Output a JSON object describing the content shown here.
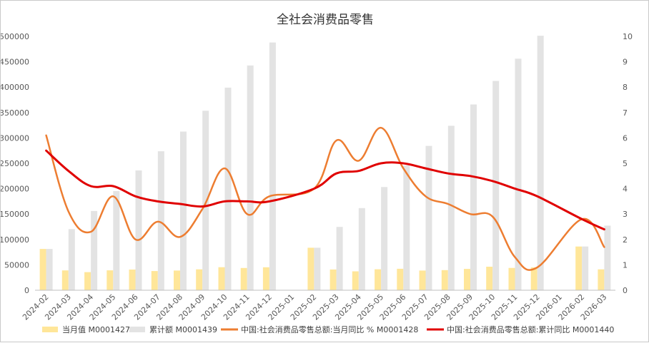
{
  "chart_data": {
    "type": "bar",
    "title": "全社会消费品零售",
    "categories": [
      "2024-02",
      "2024-03",
      "2024-04",
      "2024-05",
      "2024-06",
      "2024-07",
      "2024-08",
      "2024-09",
      "2024-10",
      "2024-11",
      "2024-12",
      "2025-01",
      "2025-02",
      "2025-03",
      "2025-04",
      "2025-05",
      "2025-06",
      "2025-07",
      "2025-08",
      "2025-09",
      "2025-10",
      "2025-11",
      "2025-12",
      "2026-01",
      "2026-02",
      "2026-03"
    ],
    "y_left": {
      "min": 0,
      "max": 500000,
      "ticks": [
        "0",
        "50000",
        "100000",
        "150000",
        "200000",
        "250000",
        "300000",
        "350000",
        "400000",
        "450000",
        "500000"
      ]
    },
    "y_right": {
      "min": 0,
      "max": 10,
      "ticks": [
        "0",
        "1",
        "2",
        "3",
        "4",
        "5",
        "6",
        "7",
        "8",
        "9",
        "10"
      ]
    },
    "grid": false,
    "legend_position": "bottom",
    "series": [
      {
        "name": "当月值 M0001427",
        "type": "bar",
        "axis": "left",
        "color": "#ffe699",
        "values": [
          81307,
          39020,
          35699,
          39211,
          40732,
          37757,
          38726,
          41112,
          45396,
          43763,
          45172,
          null,
          83731,
          40940,
          37174,
          41326,
          42287,
          38780,
          39668,
          41971,
          46291,
          43898,
          45136,
          null,
          86100,
          41200
        ]
      },
      {
        "name": "累计额 M0001439",
        "type": "bar",
        "axis": "left",
        "color": "#e3e3e3",
        "values": [
          81307,
          120327,
          156026,
          195237,
          235969,
          273726,
          312452,
          353564,
          398960,
          442723,
          487895,
          null,
          83731,
          124671,
          161845,
          203171,
          245458,
          284238,
          323906,
          365877,
          412169,
          456067,
          501203,
          null,
          86100,
          127300
        ]
      },
      {
        "name": "中国:社会消费品零售总额:当月同比 % M0001428",
        "type": "line",
        "axis": "right",
        "color": "#ed7d31",
        "smooth": true,
        "values": [
          6.1,
          3.1,
          2.3,
          3.7,
          2.0,
          2.7,
          2.1,
          3.2,
          4.8,
          3.0,
          3.7,
          null,
          4.0,
          5.9,
          5.1,
          6.4,
          4.8,
          3.7,
          3.4,
          3.0,
          2.9,
          1.3,
          0.9,
          null,
          2.8,
          1.7
        ]
      },
      {
        "name": "中国:社会消费品零售总额:累计同比 M0001440",
        "type": "line",
        "axis": "right",
        "color": "#e00000",
        "smooth": true,
        "values": [
          5.5,
          4.7,
          4.1,
          4.1,
          3.7,
          3.5,
          3.4,
          3.3,
          3.5,
          3.5,
          3.5,
          null,
          4.0,
          4.6,
          4.7,
          5.0,
          5.0,
          4.8,
          4.6,
          4.5,
          4.3,
          4.0,
          3.7,
          null,
          2.8,
          2.4
        ]
      }
    ]
  }
}
